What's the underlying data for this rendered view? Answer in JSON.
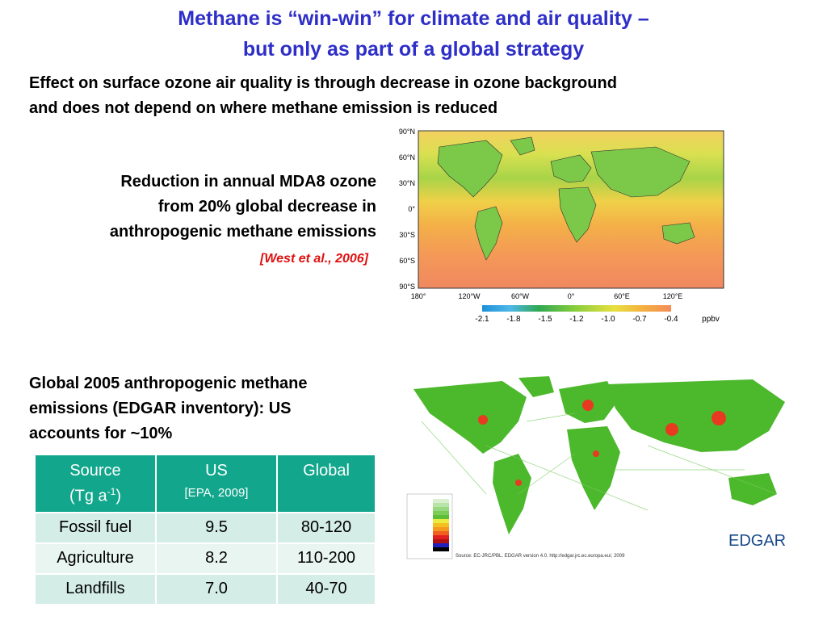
{
  "title_line1": "Methane is “win-win” for climate and air quality –",
  "title_line2": "but only as part of a global strategy",
  "subtitle_line1": "Effect on surface ozone air quality is through decrease in ozone background",
  "subtitle_line2": "and does not depend on where methane emission is reduced",
  "caption_line1": "Reduction in annual MDA8 ozone",
  "caption_line2": "from 20% global  decrease in",
  "caption_line3": "anthropogenic methane emissions",
  "citation": "[West et al., 2006]",
  "ozone_map": {
    "lat_labels": [
      "90°N",
      "60°N",
      "30°N",
      "0°",
      "30°S",
      "60°S",
      "90°S"
    ],
    "lon_labels": [
      "180°",
      "120°W",
      "60°W",
      "0°",
      "60°E",
      "120°E"
    ],
    "colorbar_ticks": [
      "-2.1",
      "-1.8",
      "-1.5",
      "-1.2",
      "-1.0",
      "-0.7",
      "-0.4"
    ],
    "colorbar_unit": "ppbv",
    "colors": [
      "#1e90d8",
      "#4fb8e8",
      "#2fa850",
      "#8ccf3c",
      "#e8e040",
      "#f4b040",
      "#f48c5a"
    ]
  },
  "emissions_text_line1": "Global 2005 anthropogenic methane",
  "emissions_text_line2": "emissions (EDGAR inventory): US",
  "emissions_text_line3": "accounts for ~10%",
  "table": {
    "col1_header_line1": "Source",
    "col1_header_line2": "(Tg a",
    "col1_header_sup": "-1",
    "col1_header_close": ")",
    "col2_header": "US",
    "col2_header_sub": "[EPA, 2009]",
    "col3_header": "Global",
    "rows": [
      {
        "source": "Fossil fuel",
        "us": "9.5",
        "global": "80-120"
      },
      {
        "source": "Agriculture",
        "us": "8.2",
        "global": "110-200"
      },
      {
        "source": "Landfills",
        "us": "7.0",
        "global": "40-70"
      }
    ]
  },
  "edgar_map": {
    "logo": "EDGAR",
    "source_note": "Source: EC-JRC/PBL. EDGAR version 4.0. http://edgar.jrc.ec.europa.eu/, 2009",
    "legend_colors": [
      "#d8f0d0",
      "#b8e4a8",
      "#98d880",
      "#7ccc58",
      "#5cbe38",
      "#ecec40",
      "#f4c020",
      "#f49820",
      "#f06020",
      "#e02020",
      "#b01010",
      "#2020c0",
      "#000000"
    ]
  }
}
